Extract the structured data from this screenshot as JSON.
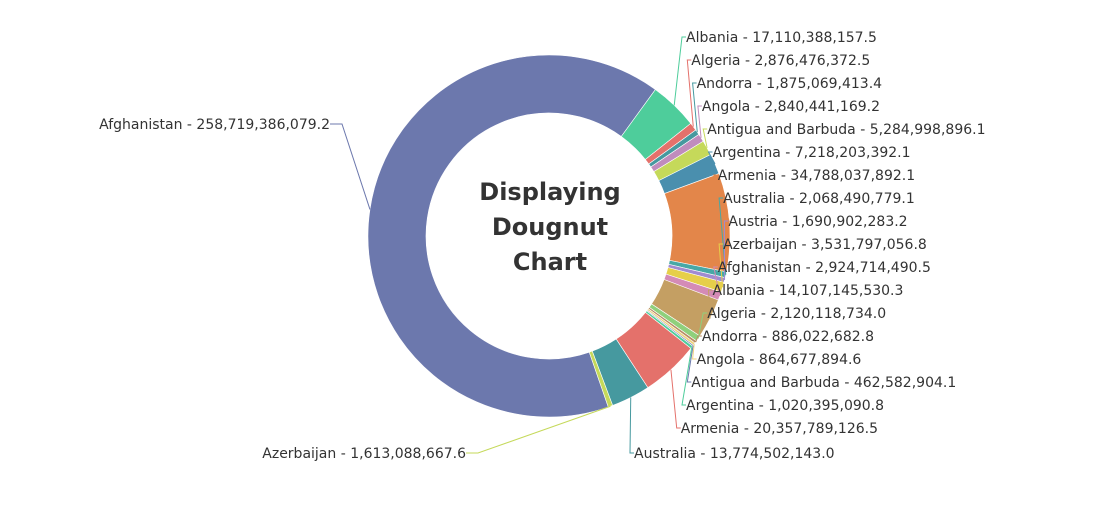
{
  "chart_data": {
    "type": "pie",
    "variant": "doughnut",
    "center_title": [
      "Displaying",
      "Dougnut",
      "Chart"
    ],
    "slices": [
      {
        "label": "Afghanistan",
        "value": 258719386079.2,
        "value_text": "258,719,386,079.2",
        "color": "#6c78ad"
      },
      {
        "label": "Albania",
        "value": 17110388157.5,
        "value_text": "17,110,388,157.5",
        "color": "#4ecd9b"
      },
      {
        "label": "Algeria",
        "value": 2876476372.5,
        "value_text": "2,876,476,372.5",
        "color": "#e4716b"
      },
      {
        "label": "Andorra",
        "value": 1875069413.4,
        "value_text": "1,875,069,413.4",
        "color": "#46999f"
      },
      {
        "label": "Angola",
        "value": 2840441169.2,
        "value_text": "2,840,441,169.2",
        "color": "#c08cbd"
      },
      {
        "label": "Antigua and Barbuda",
        "value": 5284998896.1,
        "value_text": "5,284,998,896.1",
        "color": "#c5d95a"
      },
      {
        "label": "Argentina",
        "value": 7218203392.1,
        "value_text": "7,218,203,392.1",
        "color": "#4a8fae"
      },
      {
        "label": "Armenia",
        "value": 34788037892.1,
        "value_text": "34,788,037,892.1",
        "color": "#e3864a"
      },
      {
        "label": "Australia",
        "value": 2068490779.1,
        "value_text": "2,068,490,779.1",
        "color": "#47a8a6"
      },
      {
        "label": "Austria",
        "value": 1690902283.2,
        "value_text": "1,690,902,283.2",
        "color": "#a08bd0"
      },
      {
        "label": "Azerbaijan",
        "value": 3531797056.8,
        "value_text": "3,531,797,056.8",
        "color": "#e6cf4a"
      },
      {
        "label": "Afghanistan",
        "value": 2924714490.5,
        "value_text": "2,924,714,490.5",
        "color": "#d48bb6"
      },
      {
        "label": "Albania",
        "value": 14107145530.3,
        "value_text": "14,107,145,530.3",
        "color": "#c49f63"
      },
      {
        "label": "Algeria",
        "value": 2120118734.0,
        "value_text": "2,120,118,734.0",
        "color": "#8fd07c"
      },
      {
        "label": "Andorra",
        "value": 886022682.8,
        "value_text": "886,022,682.8",
        "color": "#b98c64"
      },
      {
        "label": "Angola",
        "value": 864677894.6,
        "value_text": "864,677,894.6",
        "color": "#efd27f"
      },
      {
        "label": "Antigua and Barbuda",
        "value": 462582904.1,
        "value_text": "462,582,904.1",
        "color": "#6c78ad"
      },
      {
        "label": "Argentina",
        "value": 1020395090.8,
        "value_text": "1,020,395,090.8",
        "color": "#4ecd9b"
      },
      {
        "label": "Armenia",
        "value": 20357789126.5,
        "value_text": "20,357,789,126.5",
        "color": "#e4716b"
      },
      {
        "label": "Australia",
        "value": 13774502143.0,
        "value_text": "13,774,502,143.0",
        "color": "#46999f"
      },
      {
        "label": "Azerbaijan",
        "value": 1613088667.6,
        "value_text": "1,613,088,667.6",
        "color": "#c5d95a"
      }
    ]
  }
}
